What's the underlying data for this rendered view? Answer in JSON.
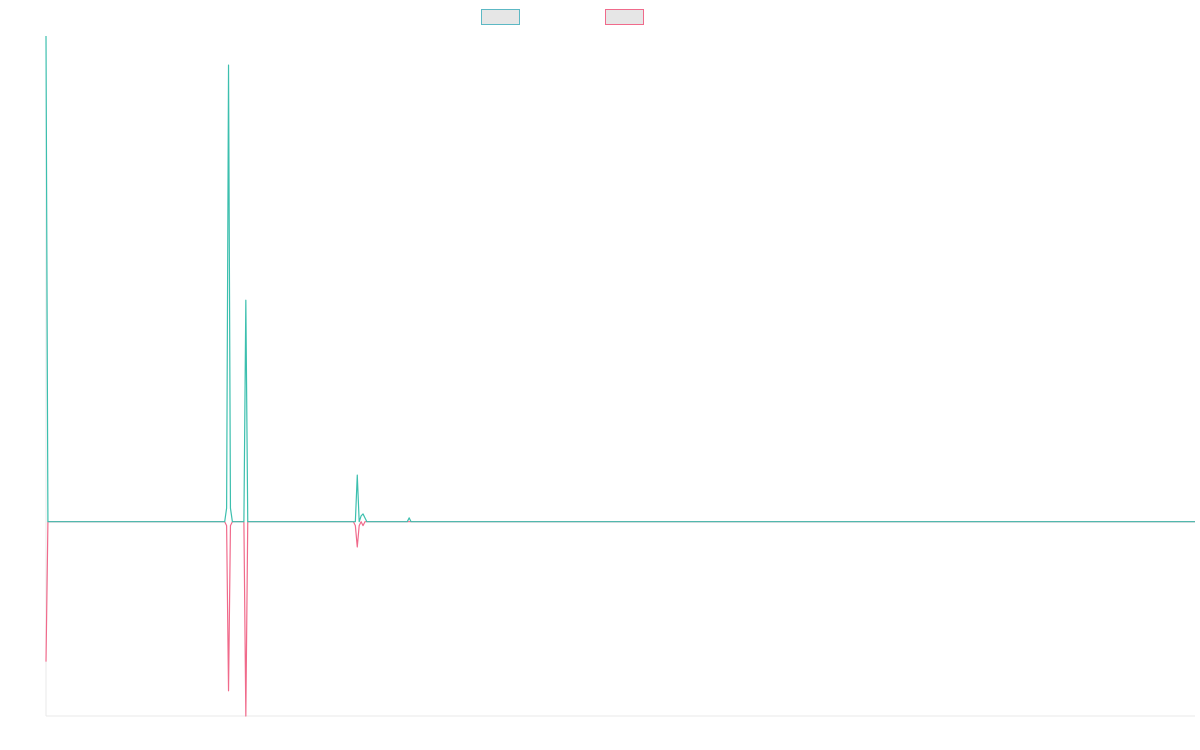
{
  "chart_data": {
    "type": "line",
    "title": "",
    "xlabel": "",
    "ylabel": "",
    "grid": false,
    "legend_position": "top-center",
    "xlim": [
      0,
      598
    ],
    "ylim": [
      -100,
      250
    ],
    "series": [
      {
        "color": "#3cbfae",
        "points": [
          [
            0,
            250
          ],
          [
            1,
            0
          ],
          [
            85,
            0
          ],
          [
            90,
            0
          ],
          [
            93,
            0
          ],
          [
            94,
            7
          ],
          [
            95,
            235
          ],
          [
            96,
            7
          ],
          [
            97,
            0
          ],
          [
            101,
            0
          ],
          [
            103,
            0
          ],
          [
            104,
            114
          ],
          [
            105,
            0
          ],
          [
            106,
            0
          ],
          [
            155,
            0
          ],
          [
            158,
            0
          ],
          [
            159,
            0
          ],
          [
            161,
            0
          ],
          [
            162,
            24
          ],
          [
            163,
            0
          ],
          [
            164,
            3
          ],
          [
            165,
            4
          ],
          [
            166,
            2
          ],
          [
            167,
            0
          ],
          [
            188,
            0
          ],
          [
            189,
            2
          ],
          [
            190,
            0
          ],
          [
            598,
            0
          ]
        ]
      },
      {
        "color": "#f06a8b",
        "points": [
          [
            0,
            -72
          ],
          [
            1,
            0
          ],
          [
            93,
            0
          ],
          [
            94,
            -2
          ],
          [
            95,
            -87
          ],
          [
            96,
            -2
          ],
          [
            97,
            0
          ],
          [
            103,
            0
          ],
          [
            104,
            -100
          ],
          [
            105,
            0
          ],
          [
            158,
            0
          ],
          [
            160,
            0
          ],
          [
            161,
            -2
          ],
          [
            162,
            -13
          ],
          [
            163,
            -2
          ],
          [
            164,
            0
          ],
          [
            165,
            -2
          ],
          [
            166,
            0
          ],
          [
            598,
            0
          ]
        ]
      }
    ]
  }
}
